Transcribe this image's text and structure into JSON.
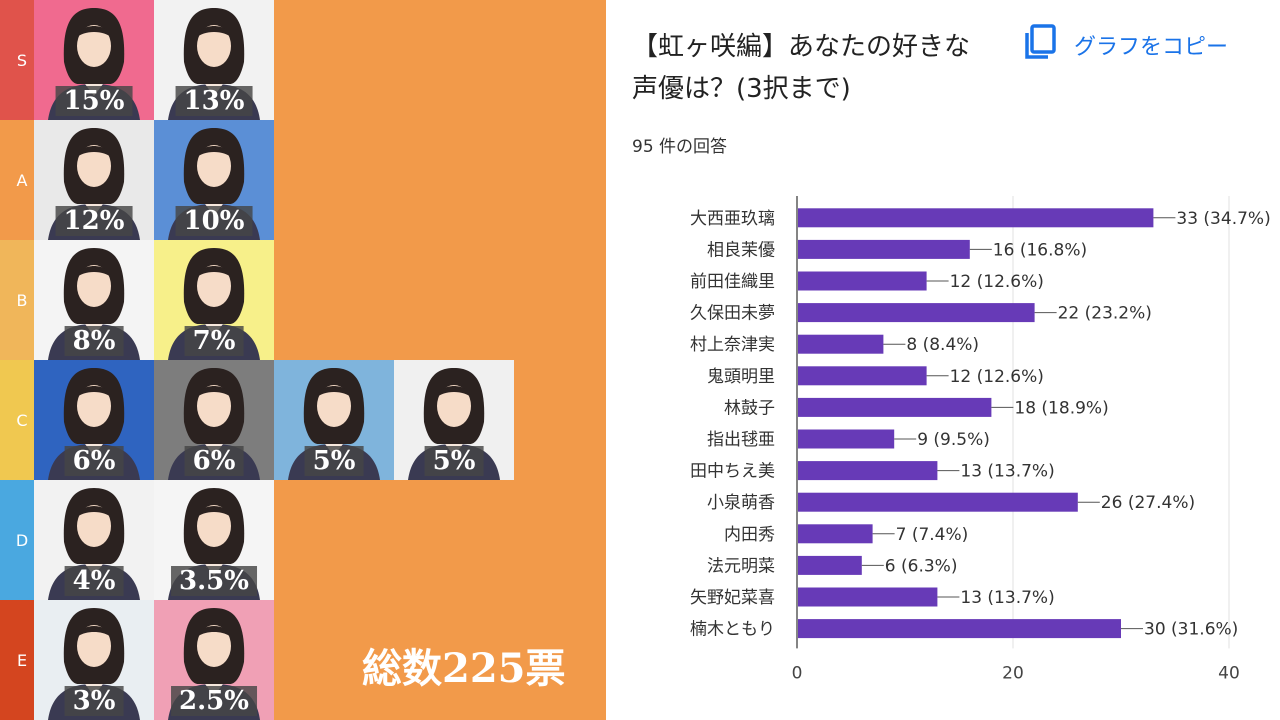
{
  "tier_list": {
    "total_label": "総数225票",
    "tiers": [
      {
        "label": "S",
        "color": "#e0534b",
        "cards": [
          {
            "pct": "15%",
            "bg": "#f06a8f"
          },
          {
            "pct": "13%",
            "bg": "#f2f2f2"
          }
        ]
      },
      {
        "label": "A",
        "color": "#f29a4a",
        "cards": [
          {
            "pct": "12%",
            "bg": "#e9e9e9"
          },
          {
            "pct": "10%",
            "bg": "#5b8fd6"
          }
        ]
      },
      {
        "label": "B",
        "color": "#f0b65a",
        "cards": [
          {
            "pct": "8%",
            "bg": "#f4f4f4"
          },
          {
            "pct": "7%",
            "bg": "#f7f08a"
          }
        ]
      },
      {
        "label": "C",
        "color": "#f0c850",
        "cards": [
          {
            "pct": "6%",
            "bg": "#2f64c0"
          },
          {
            "pct": "6%",
            "bg": "#7d7d7d"
          },
          {
            "pct": "5%",
            "bg": "#7fb4dc"
          },
          {
            "pct": "5%",
            "bg": "#f0f0f0"
          }
        ]
      },
      {
        "label": "D",
        "color": "#4aa8e0",
        "cards": [
          {
            "pct": "4%",
            "bg": "#f2f2f2"
          },
          {
            "pct": "3.5%",
            "bg": "#f5f5f5"
          }
        ]
      },
      {
        "label": "E",
        "color": "#d4451f",
        "cards": [
          {
            "pct": "3%",
            "bg": "#e9eef2"
          },
          {
            "pct": "2.5%",
            "bg": "#f0a0b5"
          }
        ]
      }
    ]
  },
  "form": {
    "title": "【虹ヶ咲編】あなたの好きな声優は？(3択まで)",
    "copy_label": "グラフをコピー",
    "copy_icon": "copy-icon",
    "responses": "95 件の回答"
  },
  "chart_data": {
    "type": "bar",
    "orientation": "horizontal",
    "categories": [
      "大西亜玖璃",
      "相良茉優",
      "前田佳織里",
      "久保田未夢",
      "村上奈津実",
      "鬼頭明里",
      "林鼓子",
      "指出毬亜",
      "田中ちえ美",
      "小泉萌香",
      "内田秀",
      "法元明菜",
      "矢野妃菜喜",
      "楠木ともり"
    ],
    "values": [
      33,
      16,
      12,
      22,
      8,
      12,
      18,
      9,
      13,
      26,
      7,
      6,
      13,
      30
    ],
    "data_labels": [
      "33 (34.7%)",
      "16 (16.8%)",
      "12 (12.6%)",
      "22 (23.2%)",
      "8 (8.4%)",
      "12 (12.6%)",
      "18 (18.9%)",
      "9 (9.5%)",
      "13 (13.7%)",
      "26 (27.4%)",
      "7 (7.4%)",
      "6 (6.3%)",
      "13 (13.7%)",
      "30 (31.6%)"
    ],
    "xlim": [
      0,
      40
    ],
    "xticks": [
      0,
      20,
      40
    ],
    "grid": true,
    "bar_color": "#673ab7"
  }
}
